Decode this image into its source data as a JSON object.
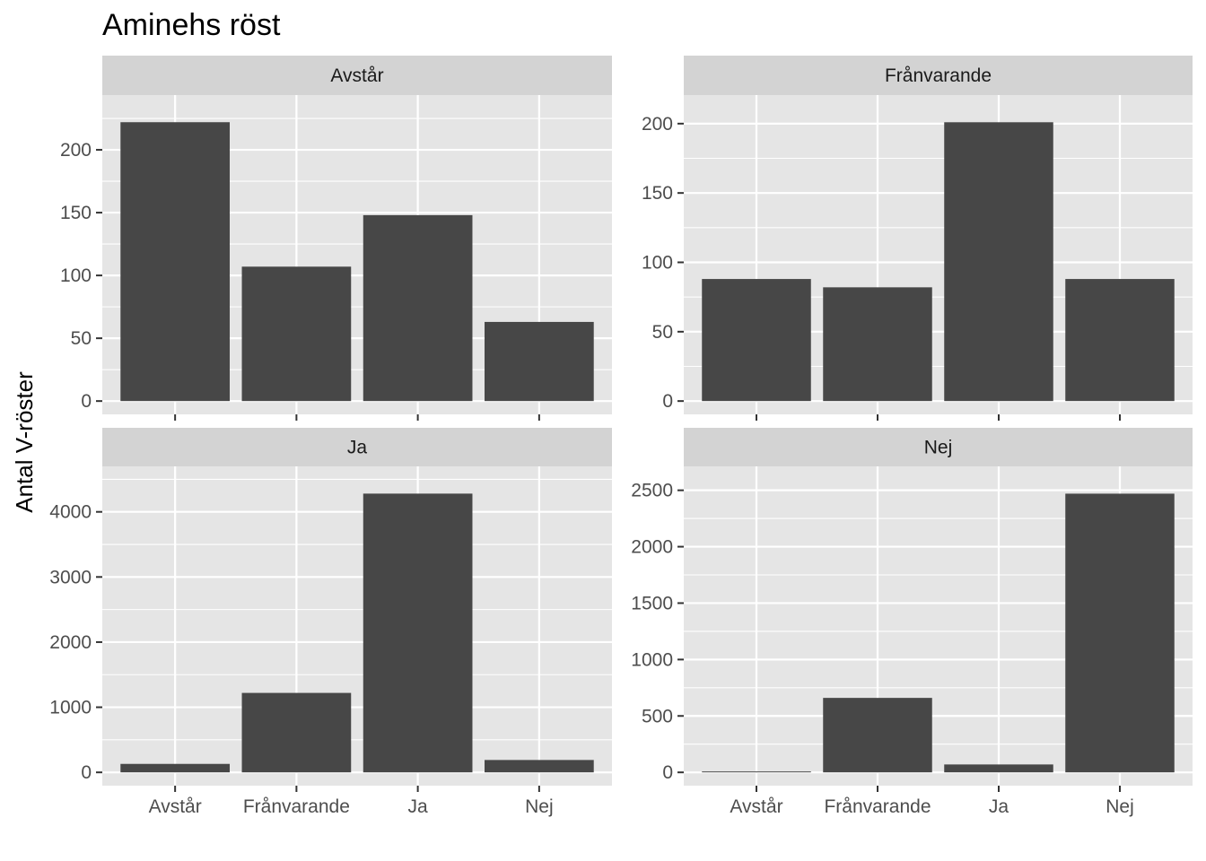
{
  "chart_data": {
    "type": "bar",
    "title": "Aminehs röst",
    "xlabel": "",
    "ylabel": "Antal V-röster",
    "categories": [
      "Avstår",
      "Frånvarande",
      "Ja",
      "Nej"
    ],
    "grid": true,
    "facets": [
      {
        "label": "Avstår",
        "values": [
          222,
          107,
          148,
          63
        ],
        "ylim": [
          0,
          233
        ],
        "yticks": [
          0,
          50,
          100,
          150,
          200
        ]
      },
      {
        "label": "Frånvarande",
        "values": [
          88,
          82,
          201,
          88
        ],
        "ylim": [
          0,
          211
        ],
        "yticks": [
          0,
          50,
          100,
          150,
          200
        ]
      },
      {
        "label": "Ja",
        "values": [
          130,
          1220,
          4280,
          190
        ],
        "ylim": [
          0,
          4494
        ],
        "yticks": [
          0,
          1000,
          2000,
          3000,
          4000
        ]
      },
      {
        "label": "Nej",
        "values": [
          8,
          660,
          70,
          2470
        ],
        "ylim": [
          0,
          2594
        ],
        "yticks": [
          0,
          500,
          1000,
          1500,
          2000,
          2500
        ]
      }
    ],
    "colors": {
      "bar": "#474747",
      "panel": "#e5e5e5",
      "strip": "#d3d3d3",
      "grid": "#ffffff"
    }
  }
}
